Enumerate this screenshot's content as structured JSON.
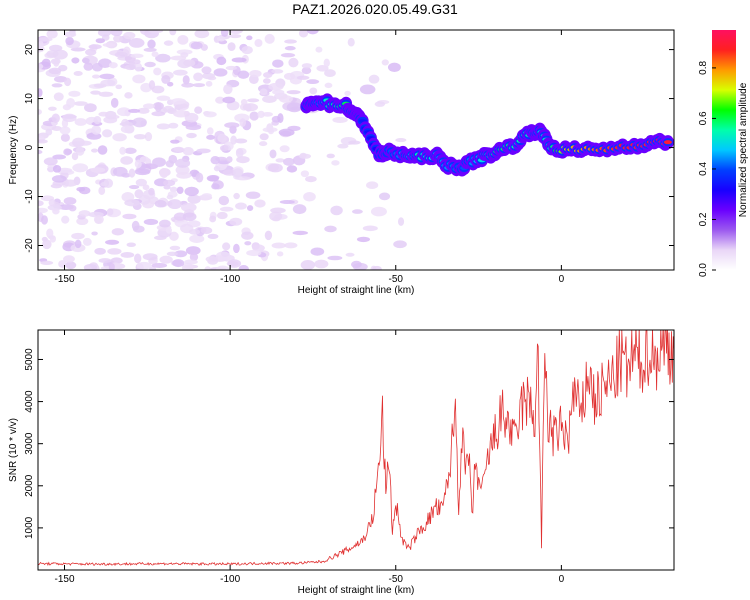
{
  "figure_title": "PAZ1.2026.020.05.49.G31",
  "chart_data": [
    {
      "type": "heatmap",
      "name": "spectrogram",
      "xlabel": "Height of straight line (km)",
      "ylabel": "Frequency (Hz)",
      "xlim": [
        -158,
        34
      ],
      "ylim": [
        -25,
        24
      ],
      "xticks": [
        -150,
        -100,
        -50,
        0
      ],
      "yticks": [
        -20,
        -10,
        0,
        10,
        20
      ],
      "colorbar": {
        "label": "Normalized spectral amplitude",
        "range": [
          0,
          0.95
        ],
        "ticks": [
          0.0,
          0.2,
          0.4,
          0.6,
          0.8
        ],
        "tick_labels": [
          "0.0",
          "0.2",
          "0.4",
          "0.6",
          "0.8"
        ],
        "colors": [
          "#ffffff",
          "#e9d6f7",
          "#9b59ef",
          "#6a00ff",
          "#1800ff",
          "#0040ff",
          "#00c8ff",
          "#00ffaa",
          "#00ff00",
          "#d8ff00",
          "#ff9a00",
          "#ff2020",
          "#ff1060"
        ]
      },
      "ridge_track": [
        {
          "x": -77,
          "y": 8.5,
          "amp": 0.35
        },
        {
          "x": -74,
          "y": 9.5,
          "amp": 0.45
        },
        {
          "x": -70,
          "y": 9.0,
          "amp": 0.55
        },
        {
          "x": -65,
          "y": 8.5,
          "amp": 0.6
        },
        {
          "x": -62,
          "y": 6.5,
          "amp": 0.45
        },
        {
          "x": -60,
          "y": 5.5,
          "amp": 0.35
        },
        {
          "x": -55,
          "y": -1.5,
          "amp": 0.3
        },
        {
          "x": -52,
          "y": -1.0,
          "amp": 0.4
        },
        {
          "x": -47,
          "y": -1.5,
          "amp": 0.45
        },
        {
          "x": -43,
          "y": -2.0,
          "amp": 0.55
        },
        {
          "x": -38,
          "y": -1.5,
          "amp": 0.5
        },
        {
          "x": -35,
          "y": -3.5,
          "amp": 0.45
        },
        {
          "x": -30,
          "y": -4.0,
          "amp": 0.4
        },
        {
          "x": -26,
          "y": -2.5,
          "amp": 0.45
        },
        {
          "x": -22,
          "y": -1.5,
          "amp": 0.55
        },
        {
          "x": -18,
          "y": -0.5,
          "amp": 0.6
        },
        {
          "x": -13,
          "y": 1.0,
          "amp": 0.55
        },
        {
          "x": -9,
          "y": 3.5,
          "amp": 0.55
        },
        {
          "x": -6,
          "y": 3.0,
          "amp": 0.5
        },
        {
          "x": -3,
          "y": 0.0,
          "amp": 0.55
        },
        {
          "x": 2,
          "y": -0.5,
          "amp": 0.75
        },
        {
          "x": 8,
          "y": -0.5,
          "amp": 0.8
        },
        {
          "x": 15,
          "y": -0.2,
          "amp": 0.85
        },
        {
          "x": 22,
          "y": 0.5,
          "amp": 0.9
        },
        {
          "x": 28,
          "y": 1.0,
          "amp": 0.9
        },
        {
          "x": 33,
          "y": 1.2,
          "amp": 0.9
        }
      ]
    },
    {
      "type": "line",
      "name": "snr",
      "xlabel": "Height of straight line (km)",
      "ylabel": "SNR (10 * v/v)",
      "xlim": [
        -158,
        34
      ],
      "ylim": [
        0,
        5700
      ],
      "xticks": [
        -150,
        -100,
        -50,
        0
      ],
      "yticks": [
        1000,
        2000,
        3000,
        4000,
        5000
      ],
      "color": "#e03030",
      "series": [
        {
          "name": "SNR",
          "x": [
            -158,
            -140,
            -120,
            -100,
            -90,
            -80,
            -72,
            -68,
            -64,
            -60,
            -57,
            -55,
            -54,
            -53,
            -52,
            -51,
            -50,
            -48,
            -46,
            -44,
            -42,
            -40,
            -38,
            -36,
            -34,
            -33,
            -32,
            -31,
            -30,
            -29,
            -28,
            -27,
            -26,
            -24,
            -22,
            -20,
            -18,
            -16,
            -14,
            -12,
            -10,
            -8,
            -7,
            -6,
            -5,
            -4,
            -2,
            0,
            2,
            4,
            6,
            8,
            10,
            12,
            14,
            16,
            18,
            20,
            22,
            24,
            26,
            28,
            30,
            32,
            34
          ],
          "y": [
            150,
            140,
            150,
            140,
            160,
            160,
            200,
            350,
            500,
            700,
            1200,
            2500,
            3700,
            1800,
            2700,
            900,
            1600,
            700,
            500,
            800,
            1000,
            1200,
            1500,
            1400,
            2200,
            3000,
            3900,
            1500,
            3200,
            2300,
            2800,
            1200,
            2500,
            1800,
            2700,
            3200,
            3700,
            3500,
            3000,
            3900,
            4000,
            3600,
            5200,
            550,
            5300,
            3500,
            3100,
            3400,
            3100,
            4300,
            3500,
            4800,
            4000,
            4200,
            4400,
            4600,
            5000,
            4700,
            5100,
            4900,
            5300,
            5000,
            5200,
            5400,
            5200
          ]
        }
      ]
    }
  ]
}
